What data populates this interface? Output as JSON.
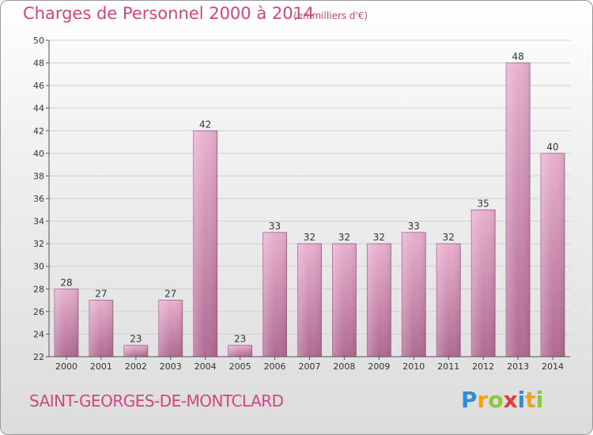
{
  "header": {
    "title": "Charges de Personnel 2000 à 2014",
    "subtitle": "(en milliers d'€)"
  },
  "footer": {
    "commune": "SAINT-GEORGES-DE-MONTCLARD",
    "logo_text": "Proxiti"
  },
  "colors": {
    "accent": "#d4457f",
    "bar_light": "#e8b0ce",
    "bar_dark": "#b06a92"
  },
  "chart_data": {
    "type": "bar",
    "title": "Charges de Personnel 2000 à 2014",
    "subtitle": "(en milliers d'€)",
    "categories": [
      "2000",
      "2001",
      "2002",
      "2003",
      "2004",
      "2005",
      "2006",
      "2007",
      "2008",
      "2009",
      "2010",
      "2011",
      "2012",
      "2013",
      "2014"
    ],
    "values": [
      28,
      27,
      23,
      27,
      42,
      23,
      33,
      32,
      32,
      32,
      33,
      32,
      35,
      48,
      40
    ],
    "ylim": [
      22,
      50
    ],
    "yticks": [
      22,
      24,
      26,
      28,
      30,
      32,
      34,
      36,
      38,
      40,
      42,
      44,
      46,
      48,
      50
    ],
    "grid": true,
    "xlabel": "",
    "ylabel": ""
  }
}
